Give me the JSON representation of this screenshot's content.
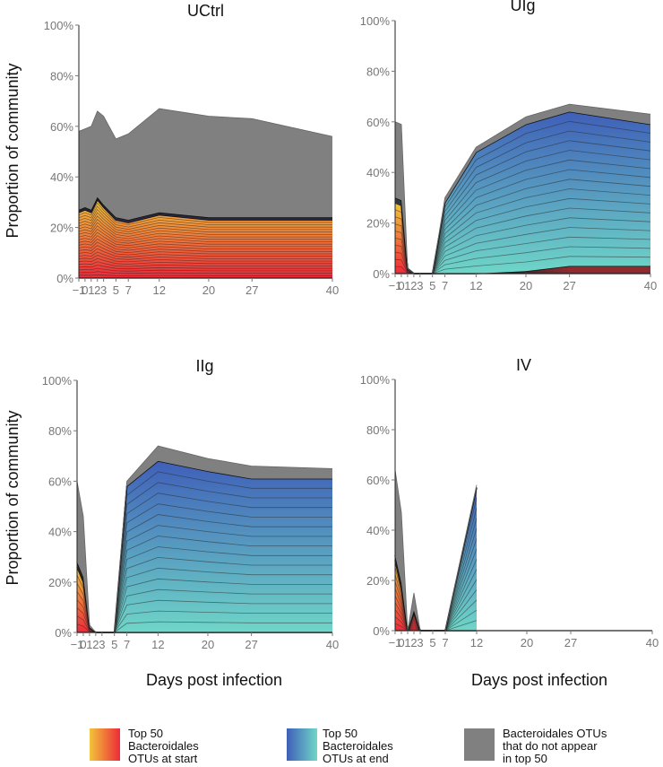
{
  "figure": {
    "y_axis_label": "Proportion of community",
    "x_axis_label": "Days post infection",
    "legend": [
      {
        "text": [
          "Top 50",
          "Bacteroidales",
          "OTUs at start"
        ],
        "colors": [
          "#f2c43a",
          "#ee2a3a"
        ]
      },
      {
        "text": [
          "Top 50",
          "Bacteroidales",
          "OTUs at end"
        ],
        "colors": [
          "#3f5fb8",
          "#6fd6c8"
        ]
      },
      {
        "text": [
          "Bacteroidales OTUs",
          "that do not appear",
          "in top 50"
        ],
        "colors": [
          "#808080",
          "#808080"
        ]
      }
    ]
  },
  "chart_data": [
    {
      "type": "area",
      "title": "UCtrl",
      "x": [
        -1,
        0,
        1,
        2,
        3,
        5,
        7,
        12,
        20,
        27,
        40
      ],
      "x_tick_labels": [
        "−1",
        "0",
        "1",
        "2",
        "3",
        "5",
        "7",
        "12",
        "20",
        "27",
        "40"
      ],
      "ylim": [
        0,
        100
      ],
      "y_ticks": [
        "0%",
        "20%",
        "40%",
        "60%",
        "80%",
        "100%"
      ],
      "series": [
        {
          "name": "Top 50 Bacteroidales OTUs at start",
          "values": [
            26,
            27,
            26,
            31,
            28,
            23,
            22,
            25,
            23,
            23,
            23
          ],
          "lines": 24,
          "gradient": [
            "#ee2a3a",
            "#f2c43a"
          ]
        },
        {
          "name": "Top 50 Bacteroidales OTUs at end",
          "values": [
            1,
            1,
            1,
            1,
            1,
            1,
            1,
            1,
            1,
            1,
            1
          ],
          "lines": 2,
          "gradient": [
            "#2c2c54",
            "#1a1a1a"
          ]
        },
        {
          "name": "Bacteroidales OTUs that do not appear in top 50",
          "values": [
            31,
            31,
            33,
            34,
            35,
            31,
            34,
            41,
            40,
            39,
            32
          ],
          "color": "#808080"
        }
      ]
    },
    {
      "type": "area",
      "title": "UIg",
      "x": [
        -1,
        0,
        1,
        2,
        3,
        5,
        7,
        12,
        20,
        27,
        40
      ],
      "x_tick_labels": [
        "−1",
        "0",
        "1",
        "2",
        "3",
        "5",
        "7",
        "12",
        "20",
        "27",
        "40"
      ],
      "ylim": [
        0,
        100
      ],
      "y_ticks": [
        "0%",
        "20%",
        "40%",
        "60%",
        "80%",
        "100%"
      ],
      "series": [
        {
          "name": "Top 50 Bacteroidales OTUs at start",
          "values": [
            28,
            27,
            2,
            0,
            0,
            0,
            0,
            0,
            1,
            3,
            3
          ],
          "lines": 10,
          "gradient": [
            "#ee2a3a",
            "#f2c43a"
          ]
        },
        {
          "name": "Top 50 Bacteroidales OTUs at end",
          "values": [
            2,
            2,
            0,
            0,
            0,
            0,
            28,
            48,
            58,
            61,
            56
          ],
          "lines": 16,
          "gradient": [
            "#6fd6c8",
            "#3f5fb8"
          ]
        },
        {
          "name": "Bacteroidales OTUs that do not appear in top 50",
          "values": [
            30,
            30,
            0,
            0,
            0,
            0,
            2,
            2,
            3,
            3,
            4
          ],
          "color": "#808080"
        }
      ]
    },
    {
      "type": "area",
      "title": "IIg",
      "x": [
        -1,
        0,
        1,
        2,
        3,
        5,
        7,
        12,
        20,
        27,
        40
      ],
      "x_tick_labels": [
        "−1",
        "0",
        "1",
        "2",
        "3",
        "5",
        "7",
        "12",
        "20",
        "27",
        "40"
      ],
      "ylim": [
        0,
        100
      ],
      "y_ticks": [
        "0%",
        "20%",
        "40%",
        "60%",
        "80%",
        "100%"
      ],
      "series": [
        {
          "name": "Top 50 Bacteroidales OTUs at start",
          "values": [
            26,
            20,
            2,
            0,
            0,
            0,
            0,
            0,
            0,
            0,
            0
          ],
          "lines": 8,
          "gradient": [
            "#ee2a3a",
            "#f2c43a"
          ]
        },
        {
          "name": "Top 50 Bacteroidales OTUs at end",
          "values": [
            2,
            2,
            0,
            0,
            0,
            0,
            58,
            68,
            64,
            61,
            61
          ],
          "lines": 16,
          "gradient": [
            "#6fd6c8",
            "#3f5fb8"
          ]
        },
        {
          "name": "Bacteroidales OTUs that do not appear in top 50",
          "values": [
            32,
            24,
            1,
            0,
            0,
            0,
            2,
            6,
            5,
            5,
            4
          ],
          "color": "#808080"
        }
      ]
    },
    {
      "type": "area",
      "title": "IV",
      "x": [
        -1,
        0,
        1,
        2,
        3,
        5,
        7,
        12,
        20,
        27,
        40
      ],
      "x_tick_labels": [
        "−1",
        "0",
        "1",
        "2",
        "3",
        "5",
        "7",
        "12",
        "20",
        "27",
        "40"
      ],
      "ylim": [
        0,
        100
      ],
      "y_ticks": [
        "0%",
        "20%",
        "40%",
        "60%",
        "80%",
        "100%"
      ],
      "series": [
        {
          "name": "Top 50 Bacteroidales OTUs at start",
          "values": [
            28,
            17,
            0,
            7,
            0,
            0,
            0,
            0,
            null,
            null,
            null
          ],
          "lines": 10,
          "gradient": [
            "#ee2a3a",
            "#f2c43a"
          ]
        },
        {
          "name": "Top 50 Bacteroidales OTUs at end",
          "values": [
            2,
            2,
            0,
            1,
            0,
            0,
            0,
            57,
            null,
            null,
            null
          ],
          "lines": 14,
          "gradient": [
            "#6fd6c8",
            "#3f5fb8"
          ]
        },
        {
          "name": "Bacteroidales OTUs that do not appear in top 50",
          "values": [
            34,
            28,
            0,
            7,
            0,
            0,
            0,
            1,
            null,
            null,
            null
          ],
          "color": "#808080"
        }
      ]
    }
  ]
}
